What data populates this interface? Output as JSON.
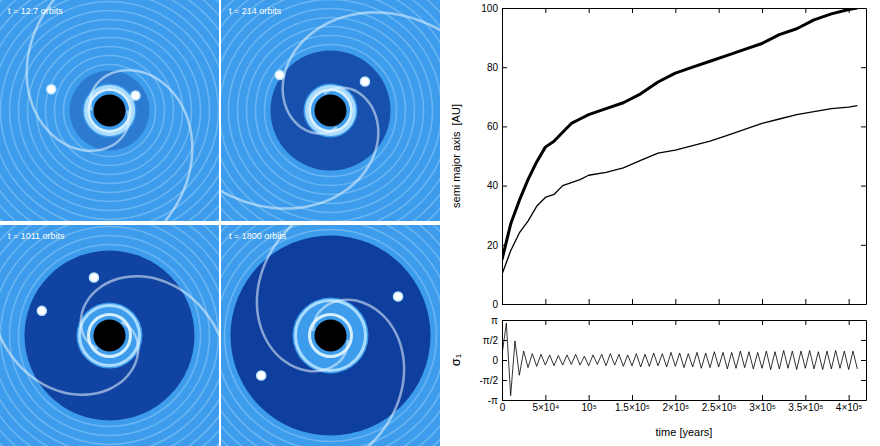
{
  "chart_data": [
    {
      "type": "image",
      "panels": [
        {
          "title": "t = 12.7 orbits"
        },
        {
          "title": "t = 214 orbits"
        },
        {
          "title": "t = 1011 orbits"
        },
        {
          "title": "t = 1800 orbits"
        }
      ]
    },
    {
      "type": "line",
      "ylabel": "semi major axis  [AU]",
      "xlim": [
        0,
        420000
      ],
      "xticks": [
        0,
        50000,
        100000,
        150000,
        200000,
        250000,
        300000,
        350000,
        400000
      ],
      "ylim": [
        0,
        100
      ],
      "yticks": [
        0,
        20,
        40,
        60,
        80,
        100
      ],
      "tick_labels": "y",
      "grid": false,
      "x": [
        0,
        10000,
        20000,
        30000,
        40000,
        50000,
        60000,
        70000,
        80000,
        90000,
        100000,
        120000,
        140000,
        160000,
        180000,
        200000,
        220000,
        240000,
        260000,
        280000,
        300000,
        320000,
        340000,
        360000,
        380000,
        400000,
        410000
      ],
      "series": [
        {
          "color": "#000000",
          "values": [
            15,
            27,
            35,
            42,
            48,
            53,
            55,
            58,
            61,
            62.5,
            64,
            66,
            68,
            71,
            75,
            78,
            80,
            82,
            84,
            86,
            88,
            91,
            93,
            96,
            98,
            99.5,
            100
          ]
        },
        {
          "color": "#000000",
          "values": [
            10,
            18,
            24,
            28,
            33,
            36,
            37,
            40,
            41,
            42,
            43.5,
            44.5,
            46,
            48.5,
            51,
            52,
            53.5,
            55,
            57,
            59,
            61,
            62.5,
            64,
            65,
            66,
            66.5,
            67
          ]
        }
      ]
    },
    {
      "type": "line",
      "xlabel": "time [years]",
      "ylabel": "σ₁",
      "xlim": [
        0,
        420000
      ],
      "xticks": [
        0,
        {
          "value": 50000,
          "label": "5×10⁴"
        },
        {
          "value": 100000,
          "label": "10⁵"
        },
        {
          "value": 150000,
          "label": "1.5×10⁵"
        },
        {
          "value": 200000,
          "label": "2×10⁵"
        },
        {
          "value": 250000,
          "label": "2.5×10⁵"
        },
        {
          "value": 300000,
          "label": "3×10⁵"
        },
        {
          "value": 350000,
          "label": "3.5×10⁵"
        },
        {
          "value": 400000,
          "label": "4×10⁵"
        }
      ],
      "ylim": [
        -3.14159,
        3.14159
      ],
      "yticks": [
        {
          "value": -3.14159,
          "label": "-π"
        },
        {
          "value": -1.5708,
          "label": "-π/2"
        },
        0,
        {
          "value": 1.5708,
          "label": "π/2"
        },
        {
          "value": 3.14159,
          "label": "π"
        }
      ],
      "grid": false,
      "x": [
        0,
        5000,
        10000,
        15000,
        20000,
        25000,
        30000,
        35000,
        40000,
        45000,
        50000,
        55000,
        60000,
        65000,
        70000,
        75000,
        80000,
        85000,
        90000,
        95000,
        100000,
        105000,
        110000,
        115000,
        120000,
        125000,
        130000,
        135000,
        140000,
        145000,
        150000,
        155000,
        160000,
        165000,
        170000,
        175000,
        180000,
        185000,
        190000,
        195000,
        200000,
        205000,
        210000,
        215000,
        220000,
        225000,
        230000,
        235000,
        240000,
        245000,
        250000,
        255000,
        260000,
        265000,
        270000,
        275000,
        280000,
        285000,
        290000,
        295000,
        300000,
        305000,
        310000,
        315000,
        320000,
        325000,
        330000,
        335000,
        340000,
        345000,
        350000,
        355000,
        360000,
        365000,
        370000,
        375000,
        380000,
        385000,
        390000,
        395000,
        400000,
        405000,
        410000
      ],
      "series": [
        {
          "color": "#000000",
          "values": [
            0.4,
            2.9,
            -2.8,
            1.5,
            -1.2,
            0.7,
            -0.6,
            0.5,
            -0.5,
            0.45,
            -0.4,
            0.4,
            -0.45,
            0.35,
            -0.4,
            0.4,
            -0.35,
            0.45,
            -0.4,
            0.3,
            -0.45,
            0.4,
            -0.35,
            0.45,
            -0.45,
            0.5,
            -0.4,
            0.45,
            -0.5,
            0.4,
            -0.45,
            0.5,
            -0.55,
            0.45,
            -0.5,
            0.55,
            -0.45,
            0.5,
            -0.55,
            0.6,
            -0.5,
            0.55,
            -0.6,
            0.5,
            -0.55,
            0.6,
            -0.65,
            0.55,
            -0.6,
            0.65,
            -0.55,
            0.6,
            -0.7,
            0.6,
            -0.65,
            0.7,
            -0.6,
            0.65,
            -0.7,
            0.6,
            -0.65,
            0.7,
            -0.75,
            0.65,
            -0.7,
            0.75,
            -0.65,
            0.7,
            -0.75,
            0.7,
            -0.65,
            0.75,
            -0.7,
            0.65,
            -0.75,
            0.7,
            -0.7,
            0.75,
            -0.65,
            0.7,
            -0.75,
            0.7,
            -0.7
          ]
        }
      ]
    }
  ]
}
